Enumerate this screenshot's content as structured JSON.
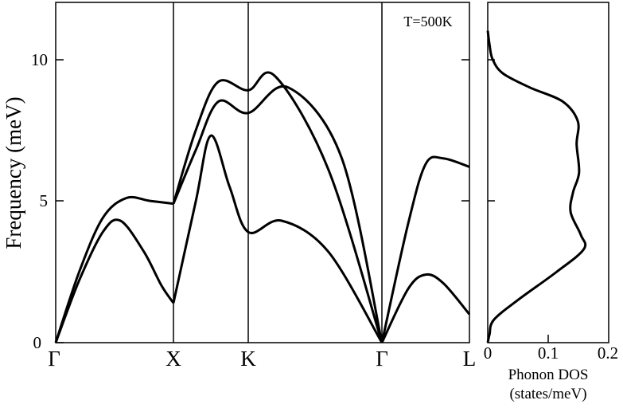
{
  "chart_data": [
    {
      "type": "line",
      "panel": "phonon-dispersion",
      "ylabel": "Frequency (meV)",
      "ylim": [
        0,
        12
      ],
      "yticks": [
        "0",
        "5",
        "10"
      ],
      "x_high_symmetry_points": [
        "Γ",
        "X",
        "K",
        "Γ",
        "L"
      ],
      "annotation": "T=500K",
      "series": [
        {
          "values_by_segment": [
            [
              0,
              0
            ],
            [
              0.2,
              2.2
            ],
            [
              0.4,
              3.9
            ],
            [
              0.55,
              4.3
            ],
            [
              0.75,
              3.2
            ],
            [
              0.9,
              2.0
            ],
            [
              1.0,
              1.4
            ]
          ]
        },
        {
          "values_by_segment": [
            [
              0,
              0
            ],
            [
              0.2,
              2.5
            ],
            [
              0.4,
              4.4
            ],
            [
              0.6,
              5.1
            ],
            [
              0.8,
              5.0
            ],
            [
              1.0,
              4.9
            ]
          ]
        },
        {
          "values_by_segment": [
            [
              1.0,
              1.4
            ],
            [
              1.3,
              5.0
            ],
            [
              1.5,
              7.3
            ],
            [
              1.75,
              5.5
            ],
            [
              2.0,
              3.9
            ],
            [
              2.25,
              4.3
            ],
            [
              2.6,
              3.2
            ],
            [
              3.0,
              0
            ]
          ]
        },
        {
          "values_by_segment": [
            [
              1.0,
              4.9
            ],
            [
              1.3,
              6.8
            ],
            [
              1.6,
              8.5
            ],
            [
              2.0,
              8.1
            ],
            [
              2.3,
              9.0
            ],
            [
              2.7,
              6.5
            ],
            [
              3.0,
              0
            ]
          ]
        },
        {
          "values_by_segment": [
            [
              1.0,
              4.9
            ],
            [
              1.3,
              7.5
            ],
            [
              1.6,
              9.2
            ],
            [
              2.0,
              8.9
            ],
            [
              2.2,
              9.4
            ],
            [
              2.6,
              6.1
            ],
            [
              3.0,
              0
            ]
          ]
        },
        {
          "values_by_segment": [
            [
              3.0,
              0
            ],
            [
              3.3,
              1.9
            ],
            [
              3.5,
              2.4
            ],
            [
              3.7,
              2.1
            ],
            [
              4.0,
              1.0
            ]
          ]
        },
        {
          "values_by_segment": [
            [
              3.0,
              0
            ],
            [
              3.3,
              4.2
            ],
            [
              3.5,
              6.3
            ],
            [
              3.7,
              6.5
            ],
            [
              4.0,
              6.2
            ]
          ]
        }
      ]
    },
    {
      "type": "line",
      "panel": "phonon-dos",
      "xlabel": "Phonon DOS\n(states/meV)",
      "xlabel_lines": [
        "Phonon DOS",
        "(states/meV)"
      ],
      "xlim": [
        0,
        0.2
      ],
      "xticks": [
        "0",
        "0.1",
        "0.2"
      ],
      "ylim": [
        0,
        12
      ],
      "series": [
        {
          "dos_vs_frequency": [
            [
              0,
              0
            ],
            [
              0.3,
              0.003
            ],
            [
              0.8,
              0.01
            ],
            [
              1.5,
              0.05
            ],
            [
              2.5,
              0.115
            ],
            [
              3.3,
              0.16
            ],
            [
              3.8,
              0.155
            ],
            [
              4.6,
              0.138
            ],
            [
              5.3,
              0.142
            ],
            [
              6.0,
              0.152
            ],
            [
              7.0,
              0.148
            ],
            [
              7.8,
              0.15
            ],
            [
              8.5,
              0.125
            ],
            [
              9.0,
              0.07
            ],
            [
              9.5,
              0.025
            ],
            [
              10.0,
              0.008
            ],
            [
              10.5,
              0.003
            ],
            [
              11.0,
              0.0
            ]
          ]
        }
      ]
    }
  ]
}
